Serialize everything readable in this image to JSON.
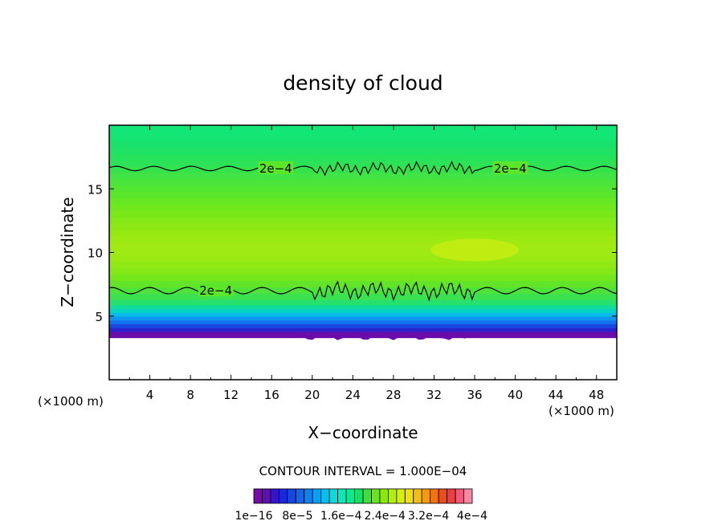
{
  "chart_data": {
    "type": "heatmap",
    "title": "density of cloud",
    "xlabel": "X−coordinate",
    "ylabel": "Z−coordinate",
    "x_unit": "(×1000 m)",
    "y_unit": "(×1000 m)",
    "xlim": [
      0,
      50
    ],
    "ylim": [
      0,
      20
    ],
    "x_ticks": [
      4,
      8,
      12,
      16,
      20,
      24,
      28,
      32,
      36,
      40,
      44,
      48
    ],
    "y_ticks": [
      5,
      10,
      15
    ],
    "contour_interval_text": "CONTOUR INTERVAL = 1.000E−04",
    "contour_levels": [
      {
        "value": 0.0002,
        "label": "2e−4",
        "z_bottom": 7.0,
        "z_top": 16.6
      }
    ],
    "colorbar": {
      "colors": [
        "#7a0aa8",
        "#5a10b4",
        "#3414c8",
        "#1a28dc",
        "#1446e6",
        "#1464f0",
        "#1082f0",
        "#0aa0f0",
        "#08c0ee",
        "#06dcdc",
        "#06ecb8",
        "#0ae890",
        "#16e068",
        "#3ce03a",
        "#66e818",
        "#8ee60e",
        "#b4ec10",
        "#d8ec10",
        "#f0e010",
        "#f4be10",
        "#f49a10",
        "#f27210",
        "#f04a18",
        "#f03c3c",
        "#f05a7a",
        "#f48aa4"
      ],
      "tick_labels": [
        "1e−16",
        "8e−5",
        "1.6e−4",
        "2.4e−4",
        "3.2e−4",
        "4e−4"
      ]
    },
    "field_rows": [
      {
        "z": 19.5,
        "color": "#12e676"
      },
      {
        "z": 19.0,
        "color": "#14e472"
      },
      {
        "z": 18.5,
        "color": "#18e26c"
      },
      {
        "z": 18.0,
        "color": "#1ee266"
      },
      {
        "z": 17.5,
        "color": "#24e25e"
      },
      {
        "z": 17.0,
        "color": "#2ce256"
      },
      {
        "z": 16.5,
        "color": "#36e24c"
      },
      {
        "z": 16.0,
        "color": "#40e444"
      },
      {
        "z": 15.5,
        "color": "#4ae43a"
      },
      {
        "z": 15.0,
        "color": "#52e632"
      },
      {
        "z": 14.5,
        "color": "#5ce62a"
      },
      {
        "z": 14.0,
        "color": "#66e822"
      },
      {
        "z": 13.5,
        "color": "#70e81c"
      },
      {
        "z": 13.0,
        "color": "#7ae818"
      },
      {
        "z": 12.5,
        "color": "#84e816"
      },
      {
        "z": 12.0,
        "color": "#8ee814"
      },
      {
        "z": 11.5,
        "color": "#96ea12"
      },
      {
        "z": 11.0,
        "color": "#9cea12"
      },
      {
        "z": 10.5,
        "color": "#a0ea12"
      },
      {
        "z": 10.0,
        "color": "#9eea12"
      },
      {
        "z": 9.5,
        "color": "#98ea12"
      },
      {
        "z": 9.0,
        "color": "#90e814"
      },
      {
        "z": 8.5,
        "color": "#84e816"
      },
      {
        "z": 8.0,
        "color": "#74e61c"
      },
      {
        "z": 7.5,
        "color": "#62e428"
      },
      {
        "z": 7.0,
        "color": "#4ee23a"
      },
      {
        "z": 6.5,
        "color": "#3ae250"
      },
      {
        "z": 6.0,
        "color": "#26e070"
      },
      {
        "z": 5.7,
        "color": "#14dc9a"
      },
      {
        "z": 5.4,
        "color": "#08d4c4"
      },
      {
        "z": 5.1,
        "color": "#08bce8"
      },
      {
        "z": 4.8,
        "color": "#0c96f0"
      },
      {
        "z": 4.5,
        "color": "#1270ee"
      },
      {
        "z": 4.2,
        "color": "#1a46e2"
      },
      {
        "z": 3.9,
        "color": "#2a24cc"
      },
      {
        "z": 3.6,
        "color": "#6a0cac"
      }
    ]
  }
}
